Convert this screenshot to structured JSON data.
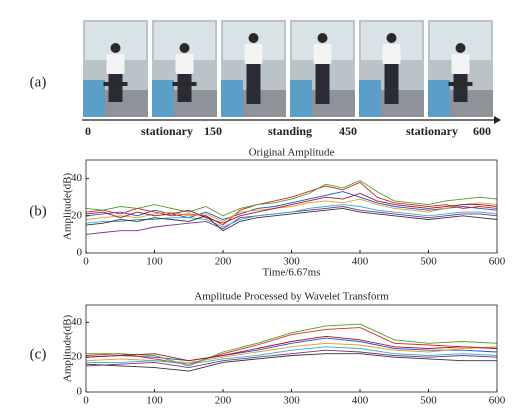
{
  "panel_a": {
    "label": "(a)",
    "timeline": {
      "ticks": [
        0,
        150,
        450,
        600
      ],
      "segments": [
        "stationary",
        "standing",
        "stationary"
      ]
    }
  },
  "panel_b": {
    "label": "(b)"
  },
  "panel_c": {
    "label": "(c)"
  },
  "chart_data": [
    {
      "type": "line",
      "title": "Original Amplitude",
      "x_label": "Time/6.67ms",
      "y_label": "Amplitude(dB)",
      "x": [
        0,
        25,
        50,
        75,
        100,
        125,
        150,
        175,
        200,
        225,
        250,
        275,
        300,
        325,
        350,
        375,
        400,
        425,
        450,
        475,
        500,
        525,
        550,
        575,
        600
      ],
      "xlim": [
        0,
        600
      ],
      "ylim": [
        0,
        50
      ],
      "xticks": [
        0,
        100,
        200,
        300,
        400,
        500,
        600
      ],
      "yticks": [
        0,
        20,
        40
      ],
      "series": [
        {
          "color": "#1f4fd1",
          "values": [
            20,
            21,
            22,
            20,
            23,
            21,
            19,
            22,
            18,
            21,
            24,
            25,
            27,
            29,
            31,
            33,
            30,
            27,
            25,
            24,
            23,
            24,
            25,
            24,
            23
          ]
        },
        {
          "color": "#d62728",
          "values": [
            22,
            23,
            21,
            24,
            22,
            20,
            21,
            20,
            15,
            23,
            26,
            28,
            30,
            33,
            36,
            34,
            38,
            30,
            27,
            26,
            25,
            26,
            24,
            25,
            24
          ]
        },
        {
          "color": "#e0a020",
          "values": [
            18,
            19,
            20,
            19,
            21,
            22,
            20,
            21,
            17,
            22,
            23,
            24,
            25,
            27,
            28,
            27,
            29,
            26,
            24,
            23,
            22,
            24,
            26,
            27,
            26
          ]
        },
        {
          "color": "#7e2f8e",
          "values": [
            10,
            11,
            12,
            12,
            14,
            15,
            16,
            17,
            13,
            19,
            20,
            21,
            22,
            23,
            24,
            25,
            23,
            22,
            21,
            20,
            19,
            20,
            21,
            21,
            20
          ]
        },
        {
          "color": "#4aa02c",
          "values": [
            24,
            23,
            25,
            24,
            26,
            24,
            22,
            25,
            20,
            24,
            26,
            27,
            29,
            32,
            37,
            35,
            39,
            33,
            28,
            27,
            26,
            28,
            29,
            30,
            29
          ]
        },
        {
          "color": "#30b0d0",
          "values": [
            16,
            17,
            17,
            18,
            18,
            19,
            19,
            18,
            14,
            18,
            20,
            21,
            22,
            24,
            25,
            26,
            25,
            23,
            22,
            21,
            20,
            21,
            22,
            22,
            21
          ]
        },
        {
          "color": "#a2142f",
          "values": [
            21,
            22,
            19,
            22,
            20,
            21,
            23,
            19,
            16,
            20,
            22,
            24,
            26,
            28,
            30,
            29,
            32,
            28,
            26,
            25,
            24,
            25,
            26,
            26,
            25
          ]
        },
        {
          "color": "#333333",
          "values": [
            15,
            16,
            18,
            17,
            19,
            18,
            17,
            20,
            12,
            17,
            19,
            20,
            21,
            22,
            23,
            24,
            22,
            21,
            20,
            19,
            18,
            19,
            20,
            19,
            18
          ]
        }
      ]
    },
    {
      "type": "line",
      "title": "Amplitude Processed by Wavelet Transform",
      "y_label": "Amplitude(dB)",
      "x": [
        0,
        50,
        100,
        150,
        200,
        250,
        300,
        350,
        400,
        450,
        500,
        550,
        600
      ],
      "xlim": [
        0,
        600
      ],
      "ylim": [
        0,
        50
      ],
      "xticks": [
        0,
        100,
        200,
        300,
        400,
        500,
        600
      ],
      "yticks": [
        0,
        20,
        40
      ],
      "series": [
        {
          "color": "#1f4fd1",
          "values": [
            20,
            21,
            20,
            18,
            21,
            24,
            28,
            31,
            29,
            25,
            24,
            24,
            23
          ]
        },
        {
          "color": "#d62728",
          "values": [
            21,
            22,
            19,
            16,
            22,
            27,
            33,
            36,
            37,
            28,
            27,
            26,
            25
          ]
        },
        {
          "color": "#e0a020",
          "values": [
            18,
            19,
            18,
            17,
            20,
            23,
            26,
            28,
            27,
            24,
            23,
            25,
            26
          ]
        },
        {
          "color": "#7e2f8e",
          "values": [
            15,
            16,
            17,
            14,
            18,
            20,
            22,
            24,
            23,
            21,
            20,
            21,
            20
          ]
        },
        {
          "color": "#4aa02c",
          "values": [
            22,
            22,
            21,
            15,
            23,
            28,
            34,
            38,
            39,
            30,
            28,
            29,
            28
          ]
        },
        {
          "color": "#30b0d0",
          "values": [
            17,
            17,
            18,
            16,
            19,
            21,
            24,
            26,
            25,
            22,
            21,
            22,
            21
          ]
        },
        {
          "color": "#a2142f",
          "values": [
            20,
            21,
            22,
            18,
            21,
            25,
            29,
            32,
            30,
            26,
            25,
            26,
            25
          ]
        },
        {
          "color": "#333333",
          "values": [
            16,
            15,
            14,
            12,
            17,
            19,
            21,
            22,
            22,
            20,
            19,
            18,
            18
          ]
        }
      ]
    }
  ]
}
